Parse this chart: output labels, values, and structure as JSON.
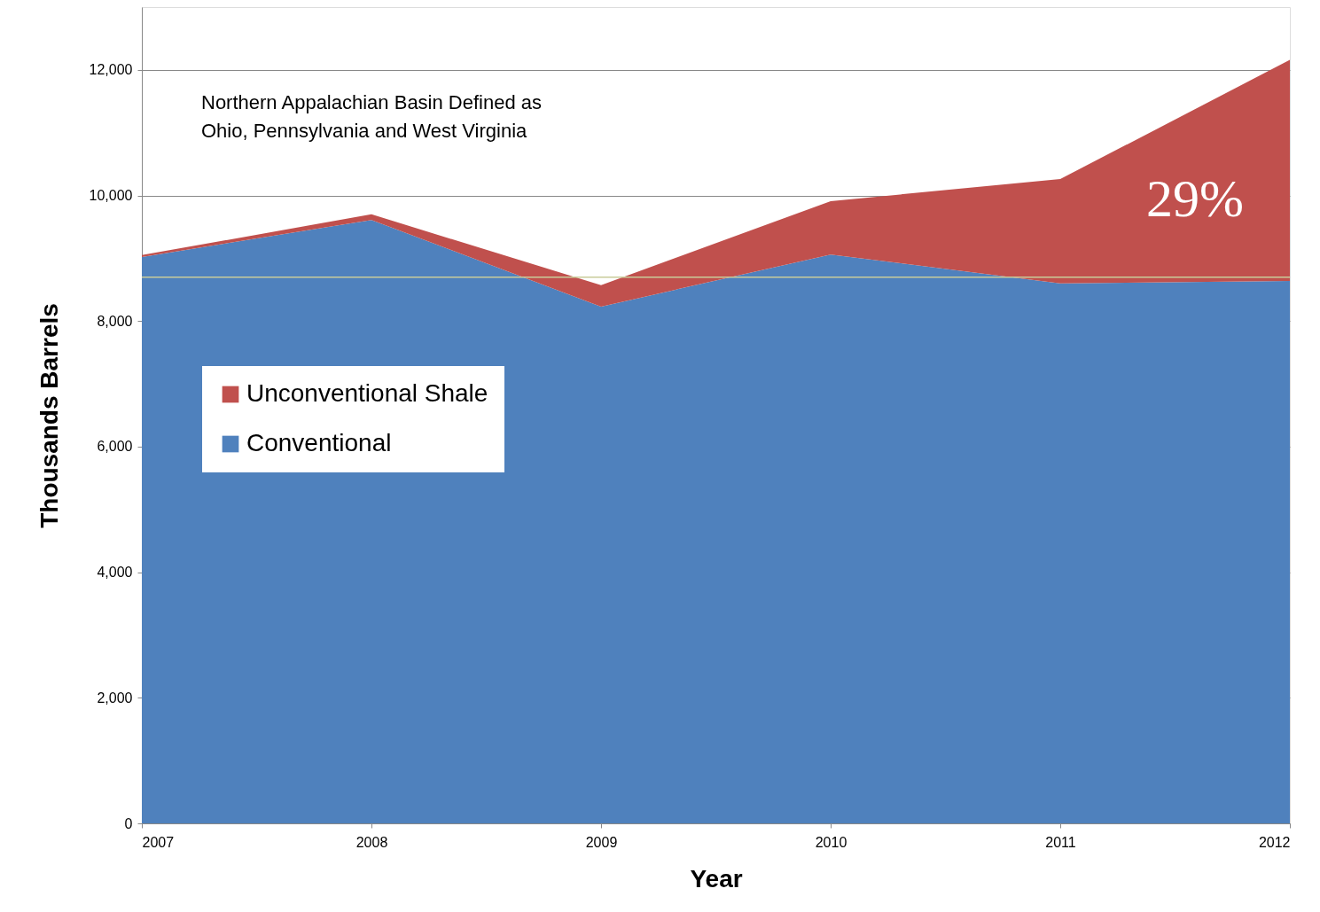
{
  "chart_data": {
    "type": "area",
    "stacked": true,
    "xlabel": "Year",
    "ylabel": "Thousands Barrels",
    "x": [
      2007,
      2008,
      2009,
      2010,
      2011,
      2012
    ],
    "series": [
      {
        "name": "Conventional",
        "color": "#4f81bd",
        "values": [
          9020,
          9610,
          8230,
          9060,
          8600,
          8640
        ]
      },
      {
        "name": "Unconventional Shale",
        "color": "#c0504d",
        "values": [
          30,
          90,
          340,
          850,
          1660,
          3520
        ]
      }
    ],
    "xlim": [
      2007,
      2012
    ],
    "xticks": [
      2007,
      2008,
      2009,
      2010,
      2011,
      2012
    ],
    "ylim": [
      0,
      13000
    ],
    "yticks": [
      0,
      {
        "value": 2000,
        "label": "2,000"
      },
      {
        "value": 4000,
        "label": "4,000"
      },
      {
        "value": 6000,
        "label": "6,000"
      },
      {
        "value": 8000,
        "label": "8,000"
      },
      {
        "value": 10000,
        "label": "10,000"
      },
      {
        "value": 12000,
        "label": "12,000"
      }
    ],
    "grid": "y",
    "legend": "left",
    "ref_lines": [
      {
        "axis": "y",
        "value": 8700,
        "color": "#c9cc9a"
      }
    ],
    "annotations": [
      "Northern Appalachian Basin Defined as\nOhio, Pennsylvania and West Virginia",
      "29%"
    ]
  }
}
